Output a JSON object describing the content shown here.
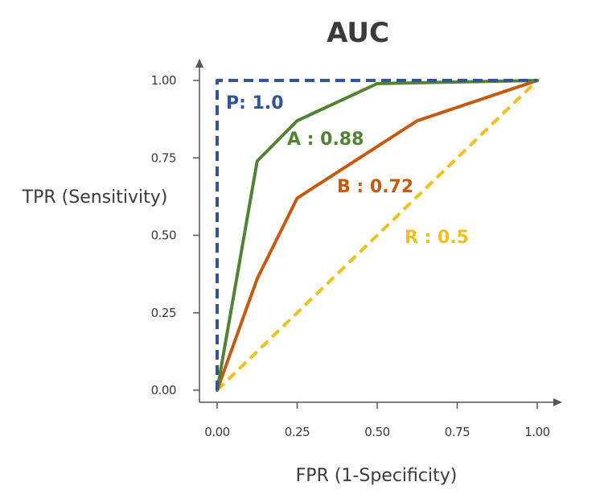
{
  "chart_data": {
    "type": "line",
    "title": "AUC",
    "xlabel": "FPR (1-Specificity)",
    "ylabel": "TPR (Sensitivity)",
    "xlim": [
      0,
      1
    ],
    "ylim": [
      0,
      1
    ],
    "xticks": [
      "0.00",
      "0.25",
      "0.50",
      "0.75",
      "1.00"
    ],
    "yticks": [
      "0.00",
      "0.25",
      "0.50",
      "0.75",
      "1.00"
    ],
    "grid": false,
    "legend": "none",
    "series": [
      {
        "label": "P: 1.0",
        "color": "#2f5597",
        "dash": true,
        "points": [
          [
            0,
            0
          ],
          [
            0,
            1
          ],
          [
            1,
            1
          ]
        ]
      },
      {
        "label": "A : 0.88",
        "color": "#548235",
        "dash": false,
        "points": [
          [
            0,
            0
          ],
          [
            0.125,
            0.74
          ],
          [
            0.25,
            0.87
          ],
          [
            0.5,
            0.99
          ],
          [
            1,
            1
          ]
        ]
      },
      {
        "label": "B : 0.72",
        "color": "#c55a11",
        "dash": false,
        "points": [
          [
            0,
            0
          ],
          [
            0.125,
            0.36
          ],
          [
            0.25,
            0.62
          ],
          [
            0.625,
            0.87
          ],
          [
            1,
            1
          ]
        ]
      },
      {
        "label": "R : 0.5",
        "color": "#f0c020",
        "dash": true,
        "points": [
          [
            0,
            0
          ],
          [
            1,
            1
          ]
        ]
      }
    ]
  }
}
